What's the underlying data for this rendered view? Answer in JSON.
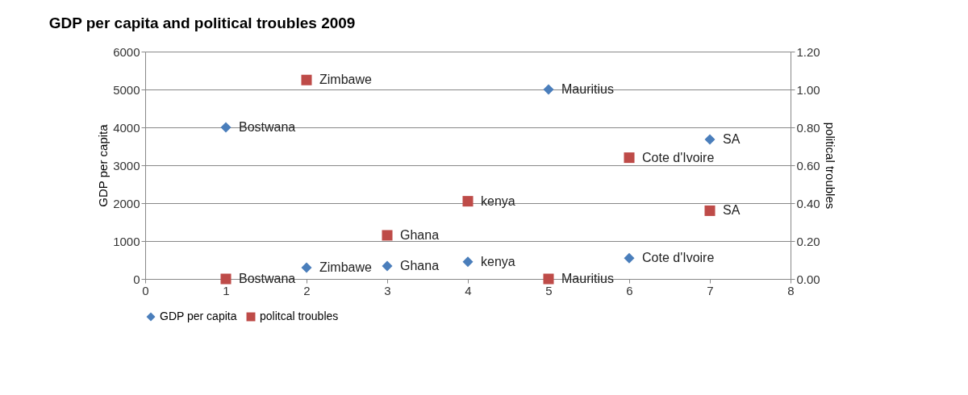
{
  "chart_data": {
    "type": "scatter",
    "title": "GDP per capita and political troubles 2009",
    "ylabel": "GDP per capita",
    "y2label": "political troubles",
    "xlim": [
      0,
      8
    ],
    "xticks": [
      0,
      1,
      2,
      3,
      4,
      5,
      6,
      7,
      8
    ],
    "ylim": [
      0,
      6000
    ],
    "yticks": [
      0,
      1000,
      2000,
      3000,
      4000,
      5000,
      6000
    ],
    "y2lim": [
      0,
      1.2
    ],
    "y2ticks": [
      {
        "value": 0,
        "label": "0.00"
      },
      {
        "value": 0.2,
        "label": "0.20"
      },
      {
        "value": 0.4,
        "label": "0.40"
      },
      {
        "value": 0.6,
        "label": "0.60"
      },
      {
        "value": 0.8,
        "label": "0.80"
      },
      {
        "value": 1.0,
        "label": "1.00"
      },
      {
        "value": 1.2,
        "label": "1.20"
      }
    ],
    "x": [
      1,
      2,
      3,
      4,
      5,
      6,
      7
    ],
    "series": [
      {
        "name": "GDP per capita",
        "color": "#4a7ebb",
        "marker": "diamond",
        "values": [
          4000,
          300,
          340,
          450,
          5000,
          550,
          3680
        ],
        "value_labels": [
          "Bostwana",
          "Zimbawe",
          "Ghana",
          "kenya",
          "Mauritius",
          "Cote d'Ivoire",
          "SA"
        ]
      },
      {
        "name": "politcal troubles",
        "color": "#be4b48",
        "marker": "square",
        "axis": "y2",
        "values": [
          0,
          1.05,
          0.23,
          0.41,
          0,
          0.64,
          0.36
        ],
        "value_labels": [
          "Bostwana",
          "Zimbawe",
          "Ghana",
          "kenya",
          "Mauritius",
          "Cote d'Ivoire",
          "SA"
        ]
      }
    ],
    "grid": "y",
    "legend": "bottom"
  }
}
